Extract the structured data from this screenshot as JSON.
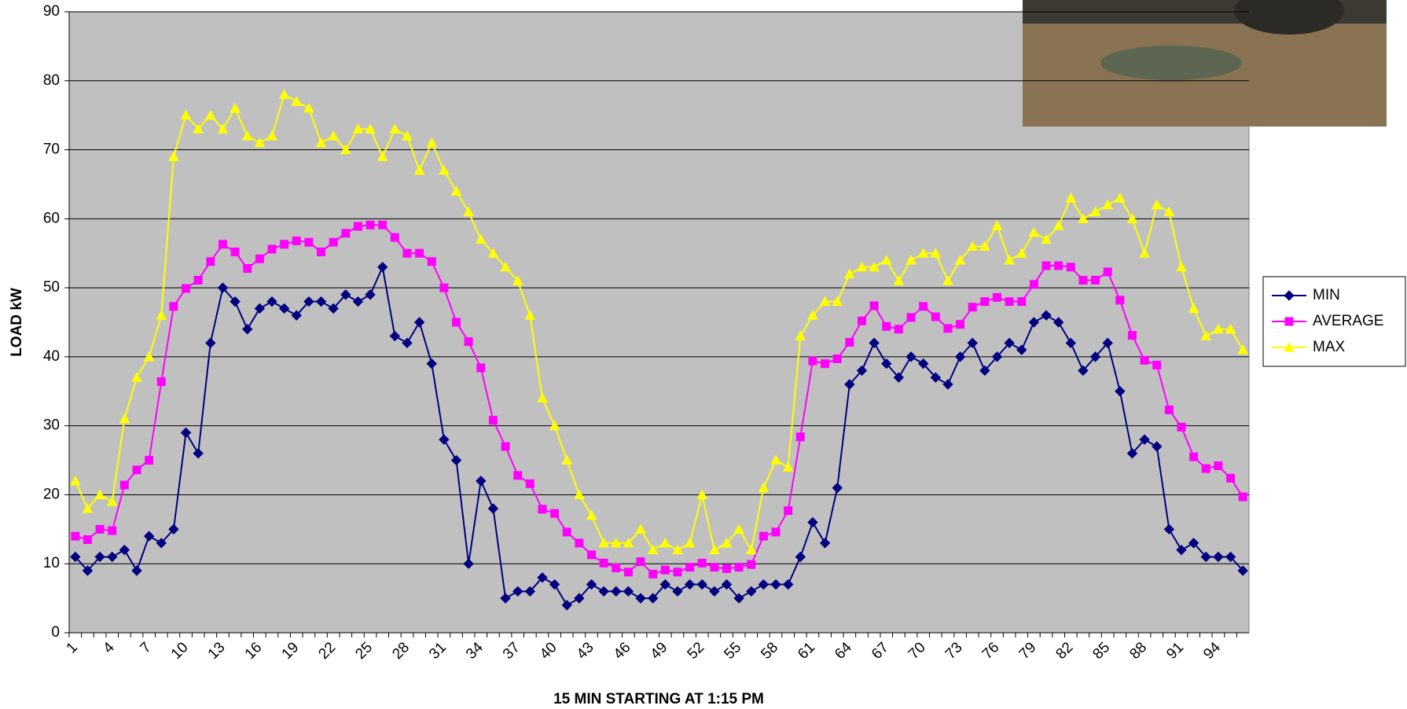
{
  "chart_data": {
    "type": "line",
    "y_label": "LOAD kW",
    "x_label": "15 MIN STARTING AT 1:15 PM",
    "categories": [
      "1",
      null,
      null,
      "4",
      null,
      null,
      "7",
      null,
      null,
      "10",
      null,
      null,
      "13",
      null,
      null,
      "16",
      null,
      null,
      "19",
      null,
      null,
      "22",
      null,
      null,
      "25",
      null,
      null,
      "28",
      null,
      null,
      "31",
      null,
      null,
      "34",
      null,
      null,
      "37",
      null,
      null,
      "40",
      null,
      null,
      "43",
      null,
      null,
      "46",
      null,
      null,
      "49",
      null,
      null,
      "52",
      null,
      null,
      "55",
      null,
      null,
      "58",
      null,
      null,
      "61",
      null,
      null,
      "64",
      null,
      null,
      "67",
      null,
      null,
      "70",
      null,
      null,
      "73",
      null,
      null,
      "76",
      null,
      null,
      "79",
      null,
      null,
      "82",
      null,
      null,
      "85",
      null,
      null,
      "88",
      null,
      null,
      "91",
      null,
      null,
      "94",
      null,
      null
    ],
    "series": [
      {
        "name": "MIN",
        "color": "#000080",
        "marker": "diamond",
        "values": [
          11,
          9,
          11,
          11,
          12,
          9,
          14,
          13,
          15,
          29,
          26,
          42,
          50,
          48,
          44,
          47,
          48,
          47,
          46,
          48,
          48,
          47,
          49,
          48,
          49,
          53,
          43,
          42,
          45,
          39,
          28,
          25,
          10,
          22,
          18,
          5,
          6,
          6,
          8,
          7,
          4,
          5,
          7,
          6,
          6,
          6,
          5,
          5,
          7,
          6,
          7,
          7,
          6,
          7,
          5,
          6,
          7,
          7,
          7,
          11,
          16,
          13,
          21,
          36,
          38,
          42,
          39,
          37,
          40,
          39,
          37,
          36,
          40,
          42,
          38,
          40,
          42,
          41,
          45,
          46,
          45,
          42,
          38,
          40,
          42,
          35,
          26,
          28,
          27,
          15,
          12,
          13,
          11,
          11,
          11,
          9
        ]
      },
      {
        "name": "AVERAGE",
        "color": "#ff00ff",
        "marker": "square",
        "values": [
          14,
          13.5,
          15,
          14.8,
          21.4,
          23.6,
          25,
          36.4,
          47.3,
          49.9,
          51.1,
          53.8,
          56.3,
          55.2,
          52.8,
          54.2,
          55.6,
          56.3,
          56.8,
          56.6,
          55.2,
          56.6,
          57.9,
          58.9,
          59.1,
          59.1,
          57.3,
          55,
          55,
          53.8,
          50,
          45,
          42.2,
          38.4,
          30.8,
          27,
          22.8,
          21.6,
          17.9,
          17.3,
          14.6,
          13,
          11.3,
          10.1,
          9.4,
          8.8,
          10.3,
          8.5,
          9.1,
          8.8,
          9.5,
          10.1,
          9.5,
          9.3,
          9.5,
          9.9,
          14,
          14.6,
          17.7,
          28.4,
          39.4,
          39,
          39.7,
          42.1,
          45.2,
          47.4,
          44.4,
          44,
          45.7,
          47.3,
          45.8,
          44.1,
          44.7,
          47.2,
          48,
          48.6,
          48,
          48,
          50.5,
          53.2,
          53.2,
          53,
          51.1,
          51.1,
          52.3,
          48.2,
          43.1,
          39.5,
          38.8,
          32.3,
          29.8,
          25.5,
          23.8,
          24.2,
          22.4,
          19.7
        ]
      },
      {
        "name": "MAX",
        "color": "#ffff00",
        "marker": "triangle",
        "values": [
          22,
          18,
          20,
          19,
          31,
          37,
          40,
          46,
          69,
          75,
          73,
          75,
          73,
          76,
          72,
          71,
          72,
          78,
          77,
          76,
          71,
          72,
          70,
          73,
          73,
          69,
          73,
          72,
          67,
          71,
          67,
          64,
          61,
          57,
          55,
          53,
          51,
          46,
          34,
          30,
          25,
          20,
          17,
          13,
          13,
          13,
          15,
          12,
          13,
          12,
          13,
          20,
          12,
          13,
          15,
          12,
          21,
          25,
          24,
          43,
          46,
          48,
          48,
          52,
          53,
          53,
          54,
          51,
          54,
          55,
          55,
          51,
          54,
          56,
          56,
          59,
          54,
          55,
          58,
          57,
          59,
          63,
          60,
          61,
          62,
          63,
          60,
          55,
          62,
          61,
          53,
          47,
          43,
          44,
          44,
          41
        ]
      }
    ],
    "ylim": [
      0,
      90
    ],
    "yticks": [
      0,
      10,
      20,
      30,
      40,
      50,
      60,
      70,
      80,
      90
    ],
    "grid": true,
    "legend": "right"
  }
}
